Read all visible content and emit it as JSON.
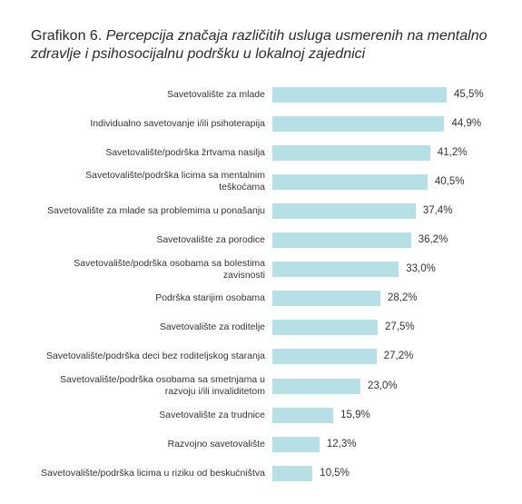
{
  "chart_data": {
    "type": "bar",
    "orientation": "horizontal",
    "title_number": "Grafikon 6.",
    "title": "Percepcija značaja različitih usluga usmerenih na mentalno zdravlje i psihosocijalnu podršku u lokalnoj zajednici",
    "color": "#b6e0e6",
    "categories": [
      "Savetovalište za mlade",
      "Individualno savetovanje i/ili psihoterapija",
      "Savetovalište/podrška žrtvama nasilja",
      "Savetovalište/podrška licima sa mentalnim\nteškoćama",
      "Savetovalište za mlade sa problemima u ponašanju",
      "Savetovalište za porodice",
      "Savetovalište/podrška osobama sa bolestima\nzavisnosti",
      "Podrška starijim osobama",
      "Savetovalište za roditelje",
      "Savetovalište/podrška deci bez roditeljskog staranja",
      "Savetovalište/podrška osobama sa smetnjama u\nrazvoju i/ili invaliditetom",
      "Savetovalište za trudnice",
      "Razvojno savetovalište",
      "Savetovalište/podrška licima u riziku od beskućništva"
    ],
    "values": [
      45.5,
      44.9,
      41.2,
      40.5,
      37.4,
      36.2,
      33.0,
      28.2,
      27.5,
      27.2,
      23.0,
      15.9,
      12.3,
      10.5
    ],
    "value_labels": [
      "45,5%",
      "44,9%",
      "41,2%",
      "40,5%",
      "37,4%",
      "36,2%",
      "33,0%",
      "28,2%",
      "27,5%",
      "27,2%",
      "23,0%",
      "15,9%",
      "12,3%",
      "10,5%"
    ]
  }
}
